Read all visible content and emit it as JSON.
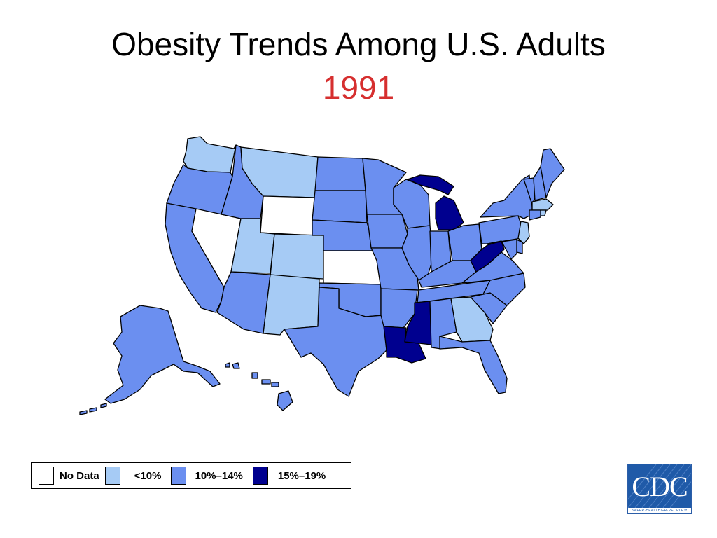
{
  "slide": {
    "title": "Obesity Trends Among U.S. Adults",
    "year": "1991"
  },
  "colors": {
    "no_data": "#ffffff",
    "lt10": "#a6cbf5",
    "r10_14": "#6b8ff0",
    "r15_19": "#00008f",
    "year_text": "#d62f2f"
  },
  "legend": [
    {
      "key": "no_data",
      "label": "No Data"
    },
    {
      "key": "lt10",
      "label": "<10%"
    },
    {
      "key": "r10_14",
      "label": "10%–14%"
    },
    {
      "key": "r15_19",
      "label": "15%–19%"
    }
  ],
  "states": {
    "WA": "lt10",
    "OR": "r10_14",
    "CA": "r10_14",
    "NV": "no_data",
    "ID": "r10_14",
    "MT": "lt10",
    "WY": "no_data",
    "UT": "lt10",
    "CO": "lt10",
    "AZ": "r10_14",
    "NM": "lt10",
    "ND": "r10_14",
    "SD": "r10_14",
    "NE": "r10_14",
    "KS": "no_data",
    "OK": "r10_14",
    "TX": "r10_14",
    "MN": "r10_14",
    "IA": "r10_14",
    "MO": "r10_14",
    "AR": "r10_14",
    "LA": "r15_19",
    "WI": "r10_14",
    "IL": "r10_14",
    "MI": "r15_19",
    "IN": "r10_14",
    "OH": "r10_14",
    "KY": "r10_14",
    "TN": "r10_14",
    "MS": "r15_19",
    "AL": "r10_14",
    "GA": "lt10",
    "FL": "r10_14",
    "SC": "r10_14",
    "NC": "r10_14",
    "VA": "r10_14",
    "WV": "r15_19",
    "PA": "r10_14",
    "NY": "r10_14",
    "VT": "r10_14",
    "NH": "r10_14",
    "ME": "r10_14",
    "MA": "lt10",
    "CT": "r10_14",
    "RI": "lt10",
    "NJ": "lt10",
    "DE": "r10_14",
    "MD": "r10_14",
    "AK": "r10_14",
    "HI": "r10_14"
  },
  "logo": {
    "text": "CDC",
    "tagline": "SAFER·HEALTHIER·PEOPLE™"
  }
}
